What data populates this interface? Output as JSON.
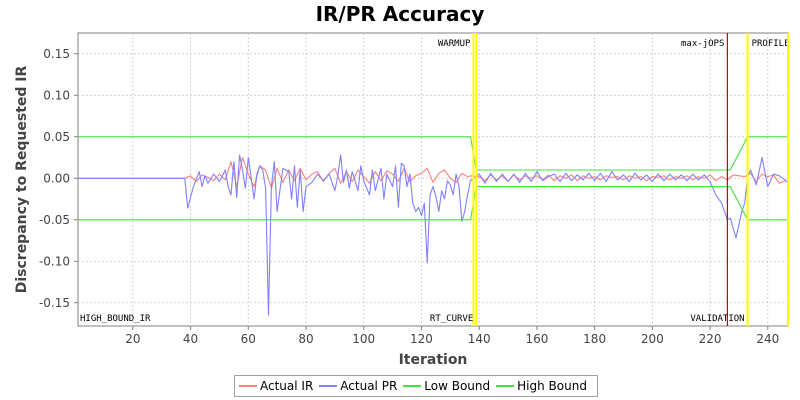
{
  "chart_data": {
    "type": "line",
    "title": "IR/PR Accuracy",
    "xlabel": "Iteration",
    "ylabel": "Discrepancy to Requested IR",
    "xlim": [
      1,
      247
    ],
    "ylim": [
      -0.178,
      0.175
    ],
    "xticks": [
      20,
      40,
      60,
      80,
      100,
      120,
      140,
      160,
      180,
      200,
      220,
      240
    ],
    "yticks": [
      0.15,
      0.1,
      0.05,
      0.0,
      -0.05,
      -0.1,
      -0.15
    ],
    "ytick_labels": [
      "0.15",
      "0.10",
      "0.05",
      "0.00",
      "-0.05",
      "-0.10",
      "-0.15"
    ],
    "grid": true,
    "legend_position": "bottom-center",
    "markers": [
      {
        "x": 138,
        "label": "WARMUP",
        "label_side": "left",
        "label_pos": "top",
        "color": "#ffff00"
      },
      {
        "x": 139,
        "label": "RT_CURVE",
        "label_side": "left",
        "label_pos": "bottom",
        "color": "#ffff00"
      },
      {
        "x": 226,
        "label": "max-jOPS",
        "label_side": "left",
        "label_pos": "top",
        "color": "#cc0000"
      },
      {
        "x": 233,
        "label": "VALIDATION",
        "label_side": "left",
        "label_pos": "bottom",
        "color": "#ffff00"
      },
      {
        "x": 233,
        "label": "PROFILE",
        "label_side": "right",
        "label_pos": "top",
        "color": "#ffff00"
      },
      {
        "x": 247,
        "label": "",
        "label_side": "right",
        "label_pos": "top",
        "color": "#ffff00"
      }
    ],
    "corner_label": "HIGH_BOUND_IR",
    "series": [
      {
        "name": "Actual IR",
        "color": "#ff8080",
        "x": [
          1,
          38,
          40,
          42,
          44,
          46,
          48,
          50,
          52,
          54,
          56,
          58,
          60,
          62,
          64,
          66,
          68,
          70,
          72,
          74,
          76,
          78,
          80,
          82,
          84,
          86,
          88,
          90,
          92,
          94,
          96,
          98,
          100,
          102,
          104,
          106,
          108,
          110,
          112,
          114,
          116,
          118,
          120,
          122,
          124,
          126,
          128,
          130,
          132,
          134,
          136,
          137,
          140,
          142,
          144,
          146,
          148,
          150,
          152,
          154,
          156,
          158,
          160,
          162,
          164,
          166,
          168,
          170,
          172,
          174,
          176,
          178,
          180,
          182,
          184,
          186,
          188,
          190,
          192,
          194,
          196,
          198,
          200,
          202,
          204,
          206,
          208,
          210,
          212,
          214,
          216,
          218,
          220,
          222,
          224,
          226,
          228,
          230,
          232,
          234,
          236,
          238,
          240,
          242,
          244,
          246,
          247
        ],
        "y": [
          0,
          0,
          0.003,
          -0.004,
          0.004,
          0.001,
          -0.003,
          0.005,
          -0.002,
          0.02,
          -0.01,
          0.025,
          0.005,
          -0.01,
          0.015,
          0.01,
          -0.012,
          0.012,
          -0.005,
          0.01,
          -0.003,
          0.012,
          -0.002,
          0.005,
          0.008,
          -0.004,
          0.006,
          0.012,
          -0.006,
          0.008,
          -0.004,
          0.01,
          0.002,
          -0.006,
          0.008,
          -0.003,
          0.009,
          0.005,
          -0.004,
          0.012,
          -0.004,
          0.003,
          0.006,
          0.012,
          -0.005,
          0.006,
          0.01,
          0,
          -0.005,
          0.006,
          0.002,
          0.003,
          0.002,
          -0.003,
          0.004,
          -0.002,
          0.003,
          -0.004,
          0.004,
          -0.002,
          0.003,
          0,
          0.003,
          -0.002,
          0.004,
          -0.003,
          0.003,
          0,
          0.004,
          -0.003,
          0.003,
          0,
          0.002,
          -0.002,
          0.003,
          0.001,
          0.002,
          -0.002,
          0.003,
          0,
          0.002,
          -0.003,
          0.002,
          0.001,
          0.003,
          -0.002,
          0.002,
          0,
          0.003,
          -0.002,
          0.002,
          0,
          0.004,
          -0.003,
          0.002,
          -0.002,
          0.004,
          0.003,
          0.002,
          0.006,
          -0.004,
          0.005,
          0.002,
          0.004,
          -0.006,
          -0.003,
          -0.005
        ]
      },
      {
        "name": "Actual PR",
        "color": "#8080ff",
        "x": [
          1,
          38,
          39,
          41,
          43,
          44,
          45,
          46,
          48,
          50,
          52,
          53,
          54,
          55,
          56,
          57,
          58,
          59,
          60,
          62,
          63,
          64,
          65,
          66,
          67,
          68,
          69,
          70,
          72,
          74,
          75,
          76,
          77,
          78,
          79,
          80,
          82,
          84,
          86,
          88,
          90,
          91,
          92,
          93,
          94,
          95,
          96,
          98,
          99,
          100,
          102,
          103,
          104,
          106,
          107,
          108,
          110,
          111,
          112,
          113,
          114,
          115,
          116,
          117,
          118,
          119,
          120,
          121,
          122,
          123,
          124,
          125,
          126,
          127,
          128,
          129,
          130,
          131,
          132,
          133,
          134,
          135,
          136,
          137,
          140,
          142,
          144,
          146,
          148,
          150,
          152,
          154,
          156,
          158,
          160,
          162,
          164,
          166,
          168,
          170,
          172,
          174,
          176,
          178,
          180,
          182,
          184,
          186,
          188,
          190,
          192,
          194,
          196,
          198,
          200,
          202,
          204,
          206,
          208,
          210,
          212,
          214,
          216,
          218,
          220,
          222,
          224,
          226,
          227,
          229,
          231,
          232,
          233,
          234,
          236,
          238,
          240,
          242,
          244,
          246,
          247
        ],
        "y": [
          0,
          0,
          -0.036,
          -0.01,
          0.008,
          -0.01,
          0.003,
          -0.006,
          0.005,
          -0.004,
          0.01,
          -0.01,
          -0.02,
          0.02,
          -0.023,
          0.028,
          0.01,
          -0.012,
          0.025,
          -0.025,
          0.005,
          0.015,
          0.01,
          -0.012,
          -0.165,
          -0.01,
          0.02,
          -0.04,
          0.012,
          0.008,
          -0.025,
          0.015,
          -0.035,
          0.01,
          -0.04,
          -0.01,
          -0.005,
          0.005,
          -0.003,
          0.005,
          -0.015,
          0.003,
          0.028,
          -0.005,
          0.01,
          -0.012,
          0.008,
          -0.015,
          0.015,
          -0.003,
          -0.02,
          0.01,
          -0.015,
          0.012,
          -0.025,
          0.005,
          -0.01,
          0.015,
          -0.035,
          0.018,
          0.015,
          -0.01,
          0.005,
          -0.03,
          -0.04,
          -0.035,
          -0.045,
          -0.03,
          -0.102,
          -0.02,
          -0.01,
          -0.022,
          -0.04,
          -0.015,
          -0.025,
          -0.003,
          -0.008,
          -0.02,
          0.005,
          -0.01,
          -0.052,
          -0.04,
          -0.02,
          -0.003,
          0.005,
          -0.006,
          0.006,
          -0.004,
          0.005,
          -0.004,
          0.005,
          -0.005,
          0.006,
          -0.004,
          0.008,
          -0.003,
          0.002,
          0.005,
          -0.004,
          0.006,
          -0.003,
          0.004,
          -0.002,
          0.006,
          -0.003,
          0.006,
          -0.004,
          0.008,
          -0.002,
          0.004,
          -0.004,
          0.006,
          -0.002,
          0.004,
          -0.004,
          0.005,
          -0.003,
          0.005,
          -0.002,
          0.004,
          -0.003,
          0.005,
          -0.002,
          0.004,
          -0.004,
          -0.02,
          -0.03,
          -0.05,
          -0.048,
          -0.072,
          -0.04,
          -0.03,
          0.002,
          0.01,
          -0.008,
          0.025,
          -0.01,
          0.005,
          0.003,
          -0.002,
          -0.005
        ]
      },
      {
        "name": "Low Bound",
        "color": "#40e040",
        "x": [
          1,
          137,
          139,
          226,
          227,
          233,
          247
        ],
        "y": [
          -0.05,
          -0.05,
          -0.01,
          -0.01,
          -0.01,
          -0.05,
          -0.05
        ]
      },
      {
        "name": "High Bound",
        "color": "#40e040",
        "x": [
          1,
          137,
          139,
          226,
          227,
          233,
          247
        ],
        "y": [
          0.05,
          0.05,
          0.01,
          0.01,
          0.01,
          0.05,
          0.05
        ]
      }
    ]
  },
  "legend": {
    "items": [
      {
        "label": "Actual IR",
        "color": "#ff8080"
      },
      {
        "label": "Actual PR",
        "color": "#8080ff"
      },
      {
        "label": "Low Bound",
        "color": "#40e040"
      },
      {
        "label": "High Bound",
        "color": "#40e040"
      }
    ]
  }
}
